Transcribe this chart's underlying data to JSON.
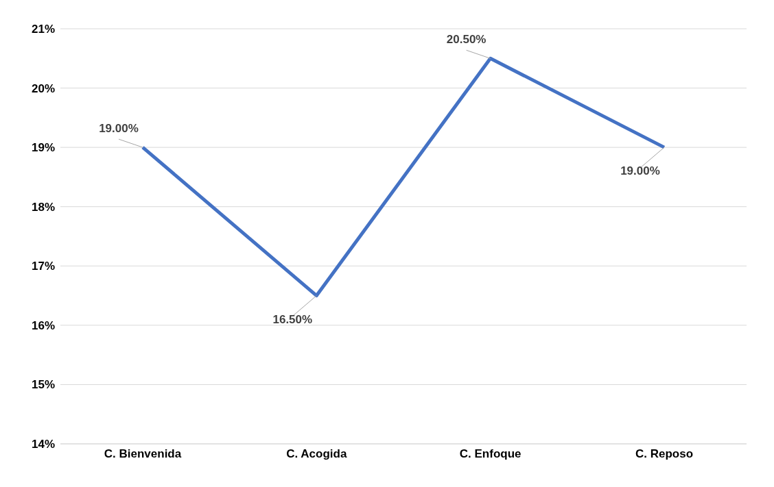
{
  "chart_data": {
    "type": "line",
    "categories": [
      "C. Bienvenida",
      "C. Acogida",
      "C. Enfoque",
      "C. Reposo"
    ],
    "series": [
      {
        "color": "#4472c4",
        "values": [
          19,
          16.5,
          20.5,
          19
        ],
        "value_labels": [
          "19.00%",
          "16.50%",
          "20.50%",
          "19.00%"
        ]
      }
    ],
    "ylim": [
      14,
      21
    ],
    "yticks": [
      {
        "value": 14,
        "label": "14%"
      },
      {
        "value": 15,
        "label": "15%"
      },
      {
        "value": 16,
        "label": "16%"
      },
      {
        "value": 17,
        "label": "17%"
      },
      {
        "value": 18,
        "label": "18%"
      },
      {
        "value": 19,
        "label": "19%"
      },
      {
        "value": 20,
        "label": "20%"
      },
      {
        "value": 21,
        "label": "21%"
      }
    ],
    "grid": "y",
    "legend": false,
    "marker": "none",
    "line_style": "solid"
  }
}
